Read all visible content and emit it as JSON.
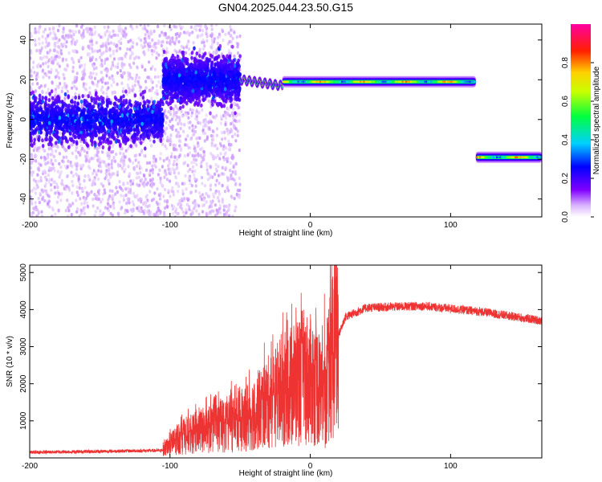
{
  "title": "GN04.2025.044.23.50.G15",
  "chart_data": [
    {
      "type": "heatmap",
      "xlabel": "Height of straight line (km)",
      "ylabel": "Frequency (Hz)",
      "xlim": [
        -200,
        165
      ],
      "ylim": [
        -49,
        48
      ],
      "xticks": [
        -200,
        -100,
        0,
        100
      ],
      "yticks": [
        -40,
        -20,
        0,
        20,
        40
      ],
      "colorbar": {
        "label": "Normalized spectral amplitude",
        "range": [
          0,
          1
        ],
        "ticks": [
          "0.0",
          "0.2",
          "0.4",
          "0.6",
          "0.8"
        ],
        "colormap": "rainbow (white-purple-blue-cyan-green-yellow-red-magenta)"
      },
      "features": [
        {
          "name": "noisy band",
          "x_range": [
            -200,
            -105
          ],
          "center_freq": 0,
          "spread": 8
        },
        {
          "name": "noisy band",
          "x_range": [
            -105,
            -50
          ],
          "center_freq": 20,
          "spread": 8
        },
        {
          "name": "transition",
          "x_range": [
            -50,
            -20
          ],
          "freq_start": 20,
          "freq_end": 17
        },
        {
          "name": "carrier line",
          "x_range": [
            -20,
            118
          ],
          "freq": 19
        },
        {
          "name": "carrier line",
          "x_range": [
            118,
            165
          ],
          "freq": -19
        }
      ]
    },
    {
      "type": "line",
      "xlabel": "Height of straight line (km)",
      "ylabel": "SNR (10 * v/v)",
      "xlim": [
        -200,
        165
      ],
      "ylim": [
        0,
        5200
      ],
      "xticks": [
        -200,
        -100,
        0,
        100
      ],
      "yticks": [
        1000,
        2000,
        3000,
        4000,
        5000
      ],
      "color": "#ee3333",
      "envelope": [
        {
          "x": -200,
          "y": 150
        },
        {
          "x": -105,
          "y": 200
        },
        {
          "x": -95,
          "y": 500
        },
        {
          "x": -80,
          "y": 700
        },
        {
          "x": -60,
          "y": 900
        },
        {
          "x": -40,
          "y": 1200
        },
        {
          "x": -20,
          "y": 1800
        },
        {
          "x": -5,
          "y": 2200
        },
        {
          "x": 5,
          "y": 2000
        },
        {
          "x": 10,
          "y": 1500
        },
        {
          "x": 15,
          "y": 2800
        },
        {
          "x": 25,
          "y": 3800
        },
        {
          "x": 40,
          "y": 4050
        },
        {
          "x": 80,
          "y": 4100
        },
        {
          "x": 120,
          "y": 3950
        },
        {
          "x": 165,
          "y": 3700
        }
      ]
    }
  ]
}
